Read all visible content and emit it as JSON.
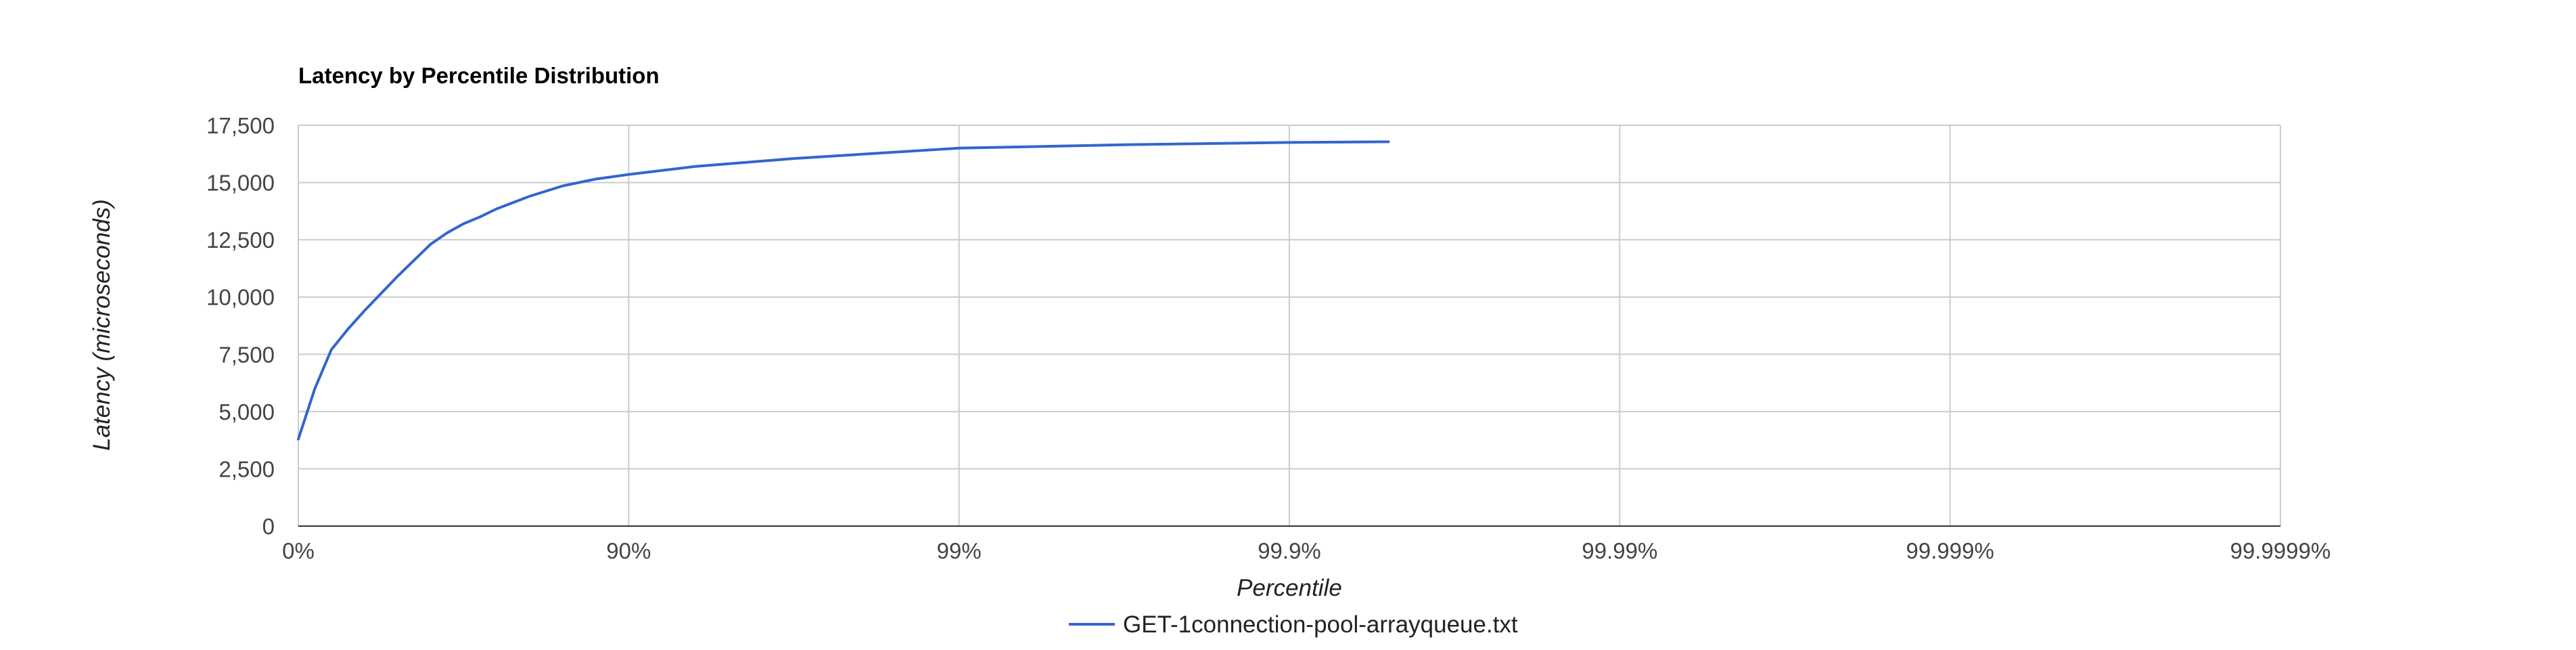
{
  "chart_data": {
    "type": "line",
    "title": "Latency by Percentile Distribution",
    "xlabel": "Percentile",
    "ylabel": "Latency (microseconds)",
    "x_scale": "log-tail",
    "x_ticks": [
      {
        "label": "0%",
        "value": 0
      },
      {
        "label": "90%",
        "value": 1
      },
      {
        "label": "99%",
        "value": 2
      },
      {
        "label": "99.9%",
        "value": 3
      },
      {
        "label": "99.99%",
        "value": 4
      },
      {
        "label": "99.999%",
        "value": 5
      },
      {
        "label": "99.9999%",
        "value": 6
      }
    ],
    "y_ticks": [
      0,
      2500,
      5000,
      7500,
      10000,
      12500,
      15000,
      17500
    ],
    "y_tick_labels": [
      "0",
      "2,500",
      "5,000",
      "7,500",
      "10,000",
      "12,500",
      "15,000",
      "17,500"
    ],
    "ylim": [
      0,
      17500
    ],
    "grid": true,
    "legend_position": "bottom",
    "series": [
      {
        "name": "GET-1connection-pool-arrayqueue.txt",
        "color": "#3366cc",
        "points": [
          [
            0.0,
            3800
          ],
          [
            0.05,
            6000
          ],
          [
            0.1,
            7700
          ],
          [
            0.15,
            8600
          ],
          [
            0.2,
            9400
          ],
          [
            0.3,
            10900
          ],
          [
            0.35,
            11600
          ],
          [
            0.4,
            12300
          ],
          [
            0.45,
            12800
          ],
          [
            0.5,
            13200
          ],
          [
            0.55,
            13500
          ],
          [
            0.6,
            13850
          ],
          [
            0.7,
            14400
          ],
          [
            0.8,
            14850
          ],
          [
            0.9,
            15150
          ],
          [
            1.0,
            15350
          ],
          [
            1.2,
            15700
          ],
          [
            1.5,
            16050
          ],
          [
            2.0,
            16500
          ],
          [
            2.5,
            16650
          ],
          [
            3.0,
            16750
          ],
          [
            3.3,
            16780
          ]
        ]
      }
    ]
  }
}
